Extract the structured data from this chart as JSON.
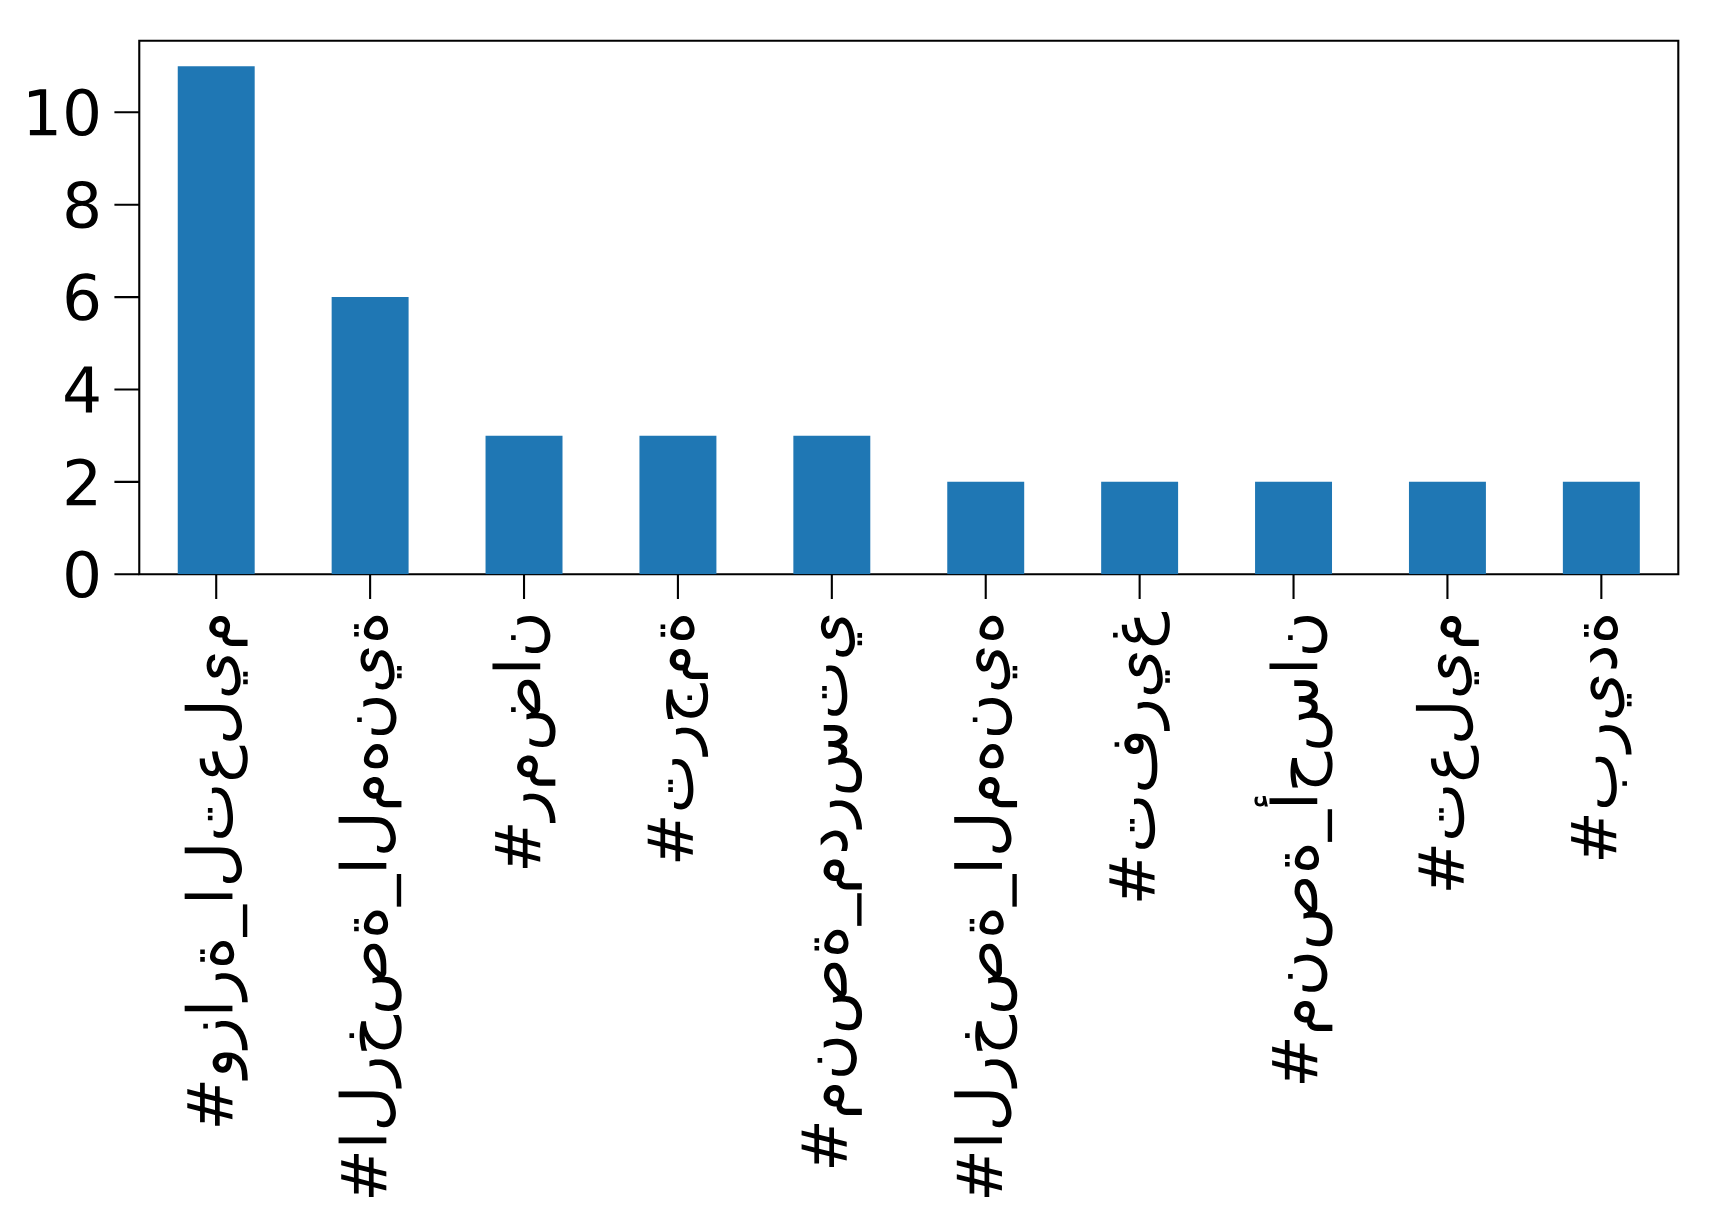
{
  "chart_data": {
    "type": "bar",
    "categories": [
      "#وزارة_التعليم",
      "#الرخصة_المهنية",
      "#رمضان",
      "#ترجمة",
      "#منصة_مدرستي",
      "#الرخصة_المهنيه",
      "#تفريغ",
      "#منصة_أحسان",
      "#تعليم",
      "#بريدة"
    ],
    "values": [
      11,
      6,
      3,
      3,
      3,
      2,
      2,
      2,
      2,
      2
    ],
    "color": "#1f77b4",
    "ylim": [
      0,
      11.55
    ],
    "yticks": [
      0,
      2,
      4,
      6,
      8,
      10
    ]
  }
}
